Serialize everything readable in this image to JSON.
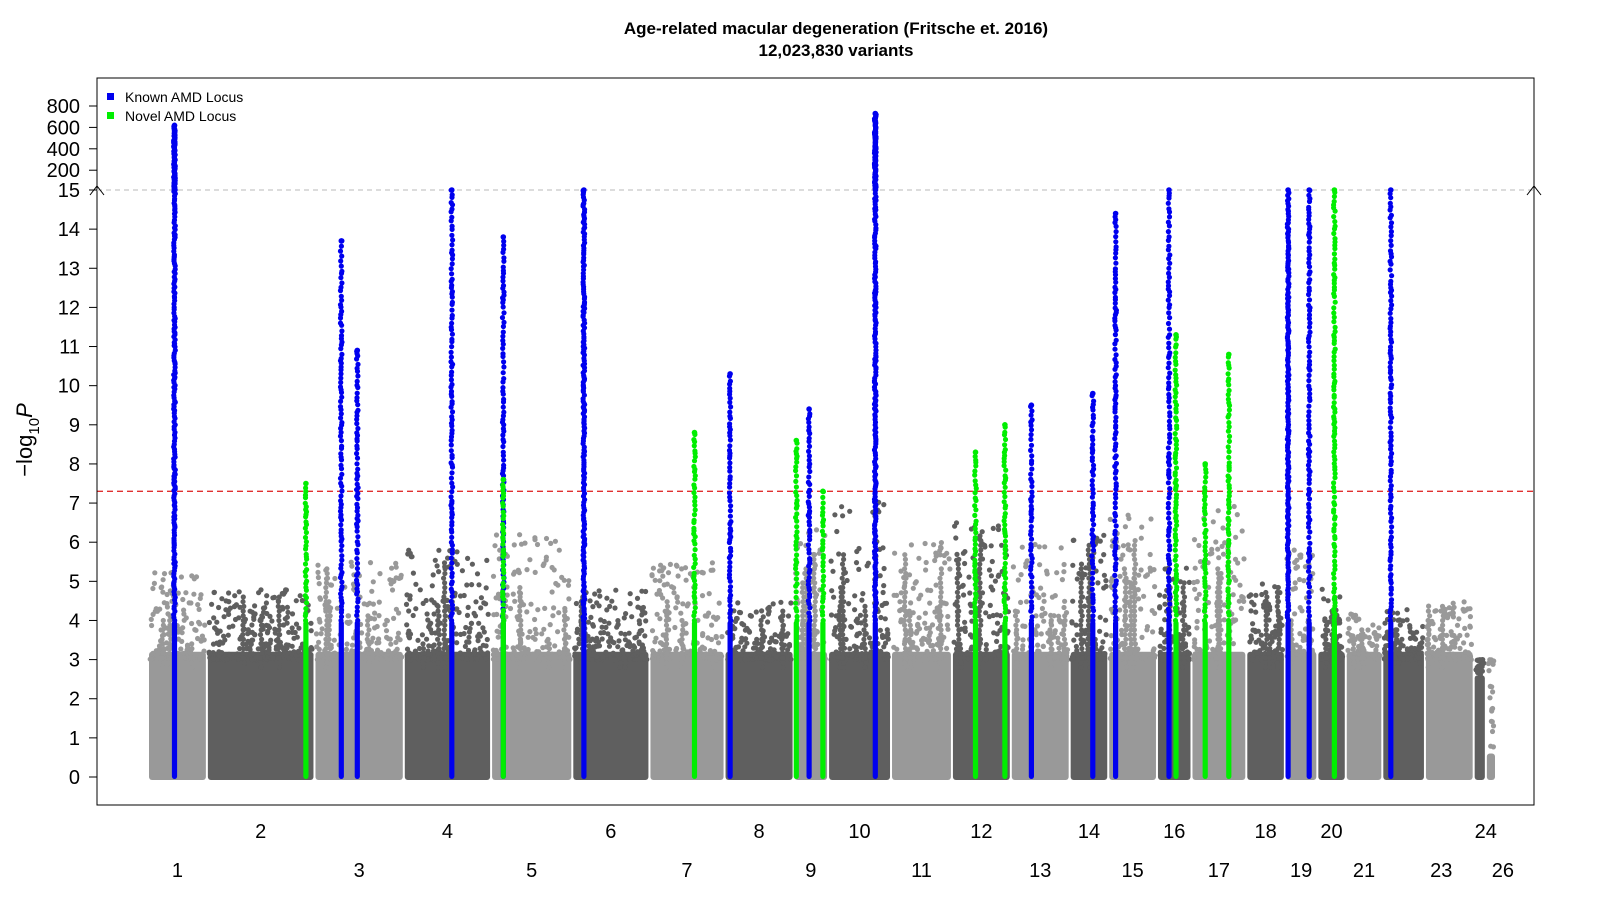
{
  "chart_data": {
    "type": "scatter",
    "subtype": "manhattan",
    "title": "Age-related macular degeneration (Fritsche et. 2016)",
    "subtitle": "12,023,830 variants",
    "ylabel_prefix": "−log",
    "ylabel_sub": "10",
    "ylabel_var": "P",
    "y_ticks_lower": [
      "0",
      "1",
      "2",
      "3",
      "4",
      "5",
      "6",
      "7",
      "8",
      "9",
      "10",
      "11",
      "12",
      "13",
      "14",
      "15"
    ],
    "y_ticks_upper": [
      "200",
      "400",
      "600",
      "800"
    ],
    "ylim_lower": [
      0,
      15
    ],
    "ylim_upper": [
      15,
      850
    ],
    "axis_break_at": 15,
    "significance_threshold": 7.3,
    "legend_position": "top-left",
    "legend": [
      {
        "label": "Known AMD Locus",
        "color": "#0000ee"
      },
      {
        "label": "Novel AMD Locus",
        "color": "#00ee00"
      }
    ],
    "colors": {
      "chrom_light": "#999999",
      "chrom_dark": "#5f5f5f",
      "known": "#0000ee",
      "novel": "#00ee00",
      "threshold": "#e03030",
      "break_line": "#c8c8c8"
    },
    "chromosome_labels_upper": [
      "2",
      "4",
      "6",
      "8",
      "10",
      "12",
      "14",
      "16",
      "18",
      "20",
      "24"
    ],
    "chromosome_labels_lower": [
      "1",
      "3",
      "5",
      "7",
      "9",
      "11",
      "13",
      "15",
      "17",
      "19",
      "21",
      "23",
      "26"
    ],
    "chromosomes": [
      {
        "chr": "1",
        "bg_max": 5.3
      },
      {
        "chr": "2",
        "bg_max": 4.8
      },
      {
        "chr": "3",
        "bg_max": 5.5
      },
      {
        "chr": "4",
        "bg_max": 5.8
      },
      {
        "chr": "5",
        "bg_max": 6.2
      },
      {
        "chr": "6",
        "bg_max": 4.8
      },
      {
        "chr": "7",
        "bg_max": 5.5
      },
      {
        "chr": "8",
        "bg_max": 4.5
      },
      {
        "chr": "9",
        "bg_max": 6.4
      },
      {
        "chr": "10",
        "bg_max": 7.1
      },
      {
        "chr": "11",
        "bg_max": 6.0
      },
      {
        "chr": "12",
        "bg_max": 6.5
      },
      {
        "chr": "13",
        "bg_max": 6.0
      },
      {
        "chr": "14",
        "bg_max": 6.2
      },
      {
        "chr": "15",
        "bg_max": 6.8
      },
      {
        "chr": "16",
        "bg_max": 5.5
      },
      {
        "chr": "17",
        "bg_max": 7.0
      },
      {
        "chr": "18",
        "bg_max": 5.0
      },
      {
        "chr": "19",
        "bg_max": 5.8
      },
      {
        "chr": "20",
        "bg_max": 4.8
      },
      {
        "chr": "21",
        "bg_max": 4.2
      },
      {
        "chr": "22",
        "bg_max": 4.3
      },
      {
        "chr": "23",
        "bg_max": 4.5
      },
      {
        "chr": "24",
        "bg_max": 2.6
      },
      {
        "chr": "26",
        "bg_max": 0.6
      }
    ],
    "loci": [
      {
        "chr": "1",
        "type": "known",
        "peak": 620
      },
      {
        "chr": "2",
        "type": "novel",
        "peak": 7.5
      },
      {
        "chr": "3",
        "type": "known",
        "peak": 13.7
      },
      {
        "chr": "3",
        "type": "known",
        "peak": 10.9
      },
      {
        "chr": "4",
        "type": "known",
        "peak": 15.0
      },
      {
        "chr": "5",
        "type": "known",
        "peak": 13.8
      },
      {
        "chr": "5",
        "type": "novel",
        "peak": 7.6
      },
      {
        "chr": "6",
        "type": "known",
        "peak": 15.2
      },
      {
        "chr": "7",
        "type": "novel",
        "peak": 8.8
      },
      {
        "chr": "8",
        "type": "known",
        "peak": 10.3
      },
      {
        "chr": "9",
        "type": "novel",
        "peak": 8.6
      },
      {
        "chr": "9",
        "type": "known",
        "peak": 9.4
      },
      {
        "chr": "9",
        "type": "novel",
        "peak": 7.3
      },
      {
        "chr": "10",
        "type": "known",
        "peak": 730
      },
      {
        "chr": "12",
        "type": "novel",
        "peak": 8.3
      },
      {
        "chr": "12",
        "type": "novel",
        "peak": 9.0
      },
      {
        "chr": "13",
        "type": "known",
        "peak": 9.5
      },
      {
        "chr": "14",
        "type": "known",
        "peak": 9.8
      },
      {
        "chr": "15",
        "type": "known",
        "peak": 14.4
      },
      {
        "chr": "16",
        "type": "known",
        "peak": 15.0
      },
      {
        "chr": "16",
        "type": "novel",
        "peak": 11.3
      },
      {
        "chr": "17",
        "type": "novel",
        "peak": 8.0
      },
      {
        "chr": "17",
        "type": "novel",
        "peak": 10.8
      },
      {
        "chr": "19",
        "type": "known",
        "peak": 15.1
      },
      {
        "chr": "19",
        "type": "known",
        "peak": 15.0
      },
      {
        "chr": "20",
        "type": "novel",
        "peak": 15.0
      },
      {
        "chr": "22",
        "type": "known",
        "peak": 15.0
      }
    ]
  }
}
